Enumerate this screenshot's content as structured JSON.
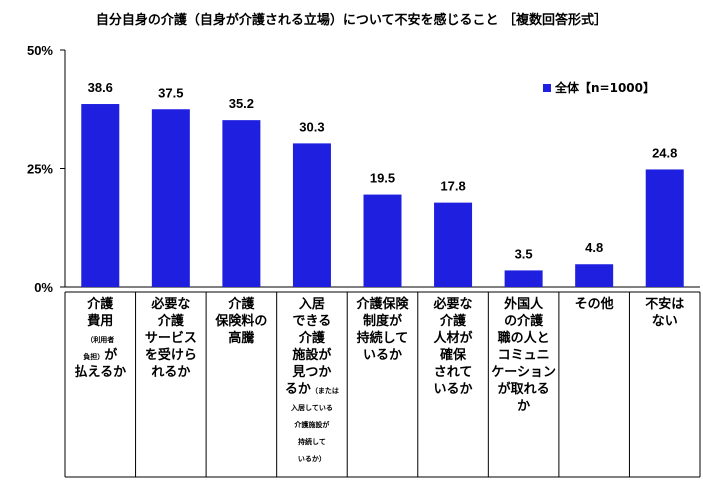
{
  "chart_data": {
    "type": "bar",
    "title": "自分自身の介護（自身が介護される立場）について不安を感じること ［複数回答形式］",
    "ylim": [
      0,
      50
    ],
    "yticks": [
      "0%",
      "25%",
      "50%"
    ],
    "ytick_values": [
      0,
      25,
      50
    ],
    "legend": {
      "label": "全体【n=1000】",
      "placement": "top-right"
    },
    "color": "#1f1fe0",
    "values": [
      38.6,
      37.5,
      35.2,
      30.3,
      19.5,
      17.8,
      3.5,
      4.8,
      24.8
    ],
    "value_labels": [
      "38.6",
      "37.5",
      "35.2",
      "30.3",
      "19.5",
      "17.8",
      "3.5",
      "4.8",
      "24.8"
    ],
    "categories": [
      [
        [
          [
            "介護"
          ]
        ],
        [
          [
            "費用"
          ]
        ],
        [
          [
            "（利用者",
            1
          ]
        ],
        [
          [
            "負担）",
            1
          ],
          [
            "が"
          ]
        ],
        [
          [
            "払えるか"
          ]
        ]
      ],
      [
        [
          [
            "必要な"
          ]
        ],
        [
          [
            "介護"
          ]
        ],
        [
          [
            "サービス"
          ]
        ],
        [
          [
            "を受けら"
          ]
        ],
        [
          [
            "れるか"
          ]
        ]
      ],
      [
        [
          [
            "介護"
          ]
        ],
        [
          [
            "保険料の"
          ]
        ],
        [
          [
            "高騰"
          ]
        ]
      ],
      [
        [
          [
            "入居"
          ]
        ],
        [
          [
            "できる"
          ]
        ],
        [
          [
            "介護"
          ]
        ],
        [
          [
            "施設が"
          ]
        ],
        [
          [
            "見つか"
          ]
        ],
        [
          [
            "るか"
          ],
          [
            "（または",
            1
          ]
        ],
        [
          [
            "入居している",
            1
          ]
        ],
        [
          [
            "介護施設が",
            1
          ]
        ],
        [
          [
            "持続して",
            1
          ]
        ],
        [
          [
            "いるか）",
            1
          ]
        ]
      ],
      [
        [
          [
            "介護保険"
          ]
        ],
        [
          [
            "制度が"
          ]
        ],
        [
          [
            "持続して"
          ]
        ],
        [
          [
            "いるか"
          ]
        ]
      ],
      [
        [
          [
            "必要な"
          ]
        ],
        [
          [
            "介護"
          ]
        ],
        [
          [
            "人材が"
          ]
        ],
        [
          [
            "確保"
          ]
        ],
        [
          [
            "されて"
          ]
        ],
        [
          [
            "いるか"
          ]
        ]
      ],
      [
        [
          [
            "外国人"
          ]
        ],
        [
          [
            "の介護"
          ]
        ],
        [
          [
            "職の人と"
          ]
        ],
        [
          [
            "コミュニ"
          ]
        ],
        [
          [
            "ケーション"
          ]
        ],
        [
          [
            "が取れる"
          ]
        ],
        [
          [
            "か"
          ]
        ]
      ],
      [
        [
          [
            "その他"
          ]
        ]
      ],
      [
        [
          [
            "不安は"
          ]
        ],
        [
          [
            "ない"
          ]
        ]
      ]
    ]
  }
}
